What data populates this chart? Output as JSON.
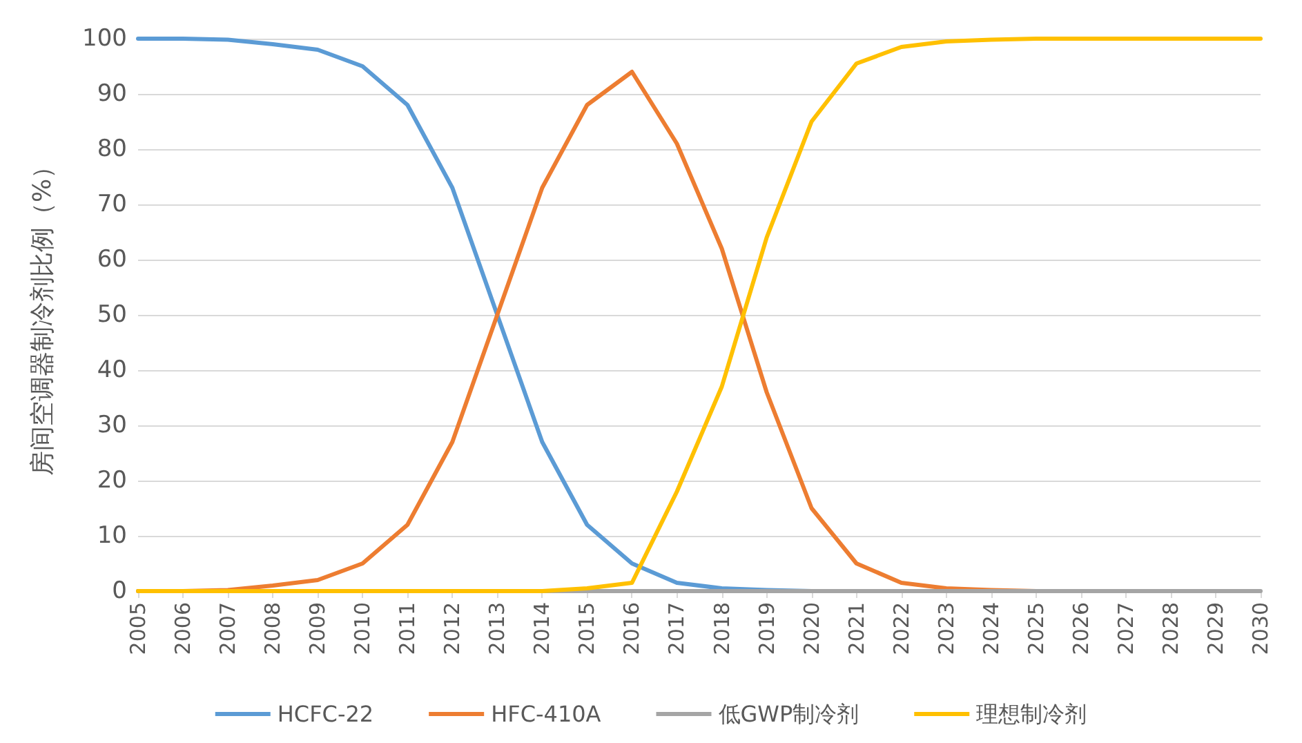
{
  "chart_data": {
    "type": "line",
    "ylabel": "房间空调器制冷剂比例（%）",
    "categories": [
      "2005",
      "2006",
      "2007",
      "2008",
      "2009",
      "2010",
      "2011",
      "2012",
      "2013",
      "2014",
      "2015",
      "2016",
      "2017",
      "2018",
      "2019",
      "2020",
      "2021",
      "2022",
      "2023",
      "2024",
      "2025",
      "2026",
      "2027",
      "2028",
      "2029",
      "2030"
    ],
    "series": [
      {
        "name": "HCFC-22",
        "color": "#5b9bd5",
        "values": [
          100,
          100,
          99.8,
          99,
          98,
          95,
          88,
          73,
          50,
          27,
          12,
          5,
          1.5,
          0.5,
          0.2,
          0,
          0,
          null,
          null,
          null,
          null,
          null,
          null,
          null,
          null,
          null
        ]
      },
      {
        "name": "HFC-410A",
        "color": "#ed7d31",
        "values": [
          0,
          0,
          0.2,
          1,
          2,
          5,
          12,
          27,
          50,
          73,
          88,
          94,
          81,
          62,
          36,
          15,
          5,
          1.5,
          0.5,
          0.2,
          0,
          0,
          null,
          null,
          null,
          null
        ]
      },
      {
        "name": "低GWP制冷剂",
        "color": "#a5a5a5",
        "values": [
          0,
          0,
          0,
          0,
          0,
          0,
          0,
          0,
          0,
          0,
          0,
          0,
          0,
          0,
          0,
          0,
          0,
          0,
          0,
          0,
          0,
          0,
          0,
          0,
          0,
          0
        ]
      },
      {
        "name": "理想制冷剂",
        "color": "#ffc000",
        "values": [
          0,
          0,
          0,
          0,
          0,
          0,
          0,
          0,
          0,
          0,
          0.5,
          1.5,
          18,
          37,
          64,
          85,
          95.5,
          98.5,
          99.5,
          99.8,
          100,
          100,
          100,
          100,
          100,
          100
        ]
      }
    ],
    "ylim": [
      0,
      100
    ],
    "yticks": [
      0,
      10,
      20,
      30,
      40,
      50,
      60,
      70,
      80,
      90,
      100
    ],
    "grid": "y",
    "legend": "bottom",
    "marker": "none",
    "line_style": "solid"
  }
}
